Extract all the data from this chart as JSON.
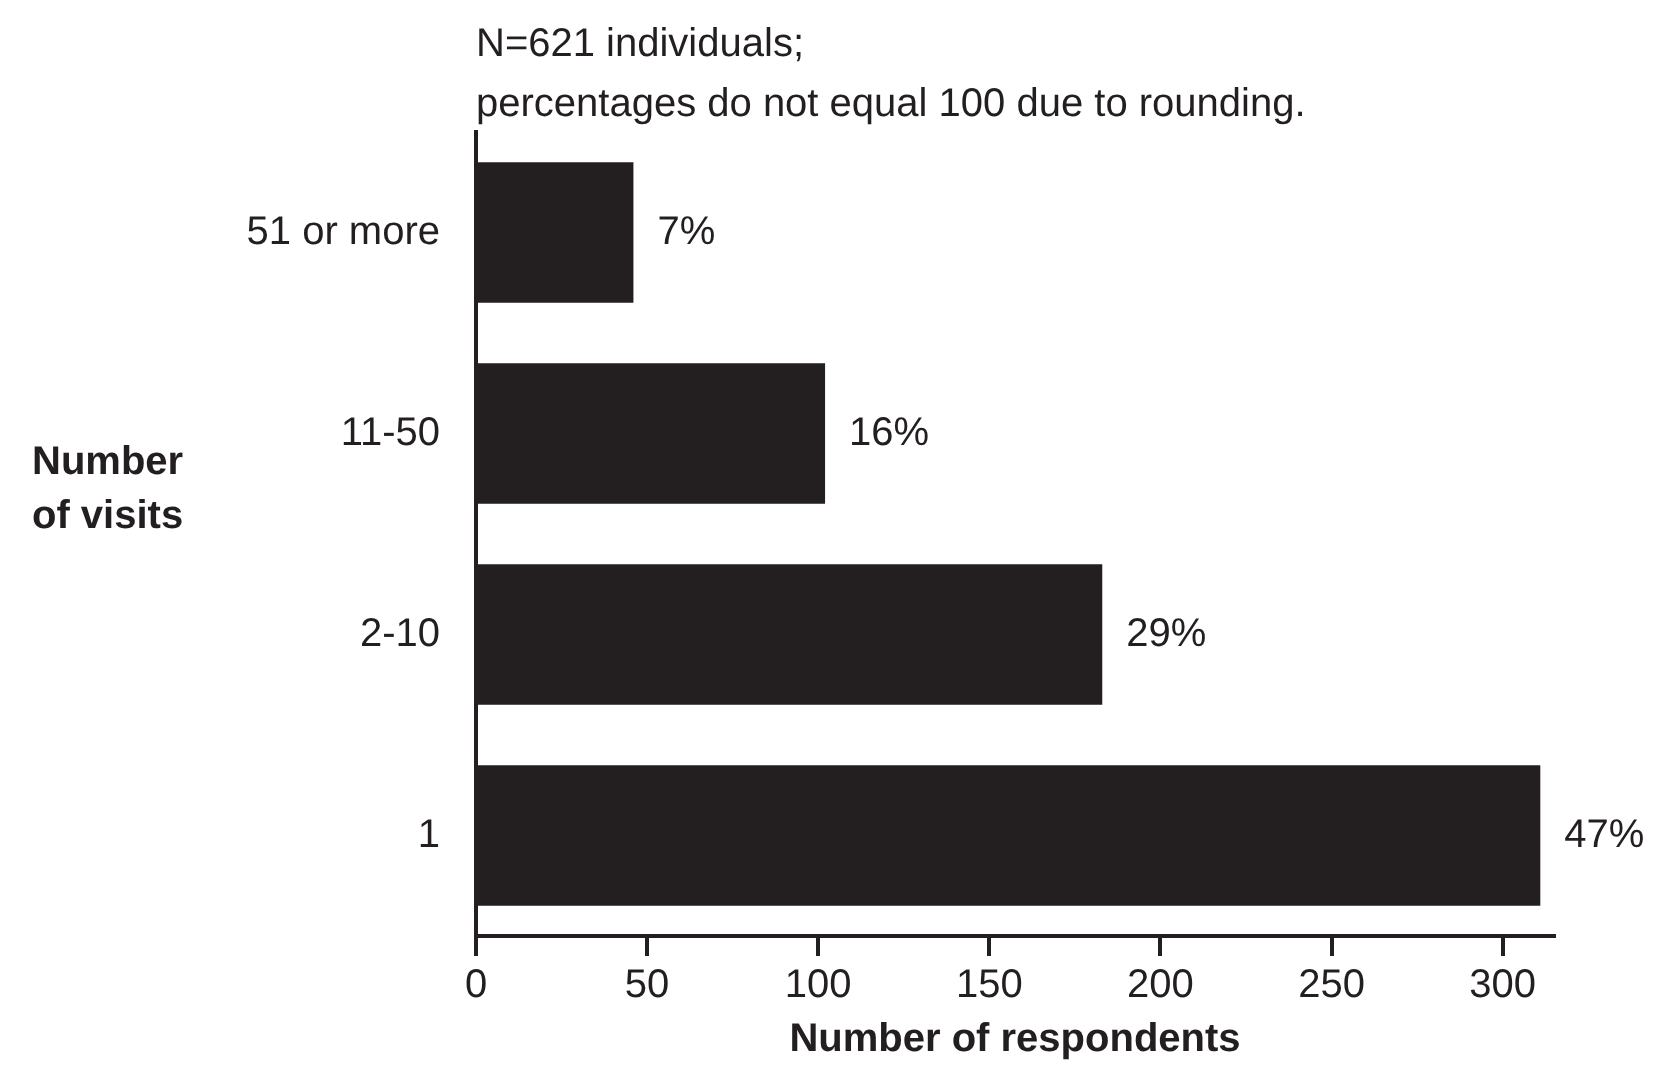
{
  "chart_data": {
    "type": "bar",
    "orientation": "horizontal",
    "xlabel": "Number of respondents",
    "ylabel": "Number\nof visits",
    "annotations": [
      "N=621 individuals;",
      "percentages do not equal 100 due to rounding.",
      {
        "text": "7%",
        "x": 46,
        "y": "51 or more"
      },
      {
        "text": "16%",
        "x": 102,
        "y": "11-50"
      },
      {
        "text": "29%",
        "x": 183,
        "y": "2-10"
      },
      {
        "text": "47%",
        "x": 311,
        "y": "1"
      }
    ],
    "categories": [
      "51 or more",
      "11-50",
      "2-10",
      "1"
    ],
    "values": [
      46,
      102,
      183,
      311
    ],
    "color": "#231f20",
    "xlim": [
      0,
      315
    ],
    "xticks": [
      0,
      50,
      100,
      150,
      200,
      250,
      300
    ]
  }
}
